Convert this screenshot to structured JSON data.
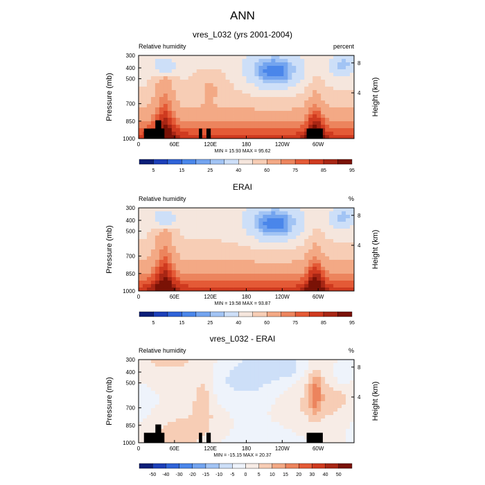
{
  "figure": {
    "title": "ANN"
  },
  "colormaps": {
    "abs": [
      "#0b1e78",
      "#1c3fb8",
      "#2f63d8",
      "#4a86ea",
      "#73a4ef",
      "#a2c4f4",
      "#cddff8",
      "#f5e6dd",
      "#f7cdb5",
      "#f3a985",
      "#ec845d",
      "#e45a36",
      "#cf3a1f",
      "#a82614",
      "#7a1206"
    ],
    "diff": [
      "#0b1e78",
      "#1c3fb8",
      "#2f63d8",
      "#4a86ea",
      "#73a4ef",
      "#a2c4f4",
      "#cddff8",
      "#eef3fb",
      "#f7ece6",
      "#f7cdb5",
      "#f3a985",
      "#ec845d",
      "#e45a36",
      "#cf3a1f",
      "#a82614",
      "#7a1206"
    ]
  },
  "chart_data": [
    {
      "type": "heatmap",
      "title": "vres_L032 (yrs 2001-2004)",
      "left_label": "Relative humidity",
      "right_label": "percent",
      "ylabel": "Pressure (mb)",
      "ylabel_right": "Height (km)",
      "xticks": [
        "0",
        "60E",
        "120E",
        "180",
        "120W",
        "60W"
      ],
      "yticks": [
        "300",
        "400",
        "500",
        "700",
        "850",
        "1000"
      ],
      "yticks_right": [
        "8",
        "4"
      ],
      "stats": "MIN = 15.93  MAX = 95.62",
      "colorbar": {
        "labels": [
          "5",
          "15",
          "25",
          "40",
          "60",
          "75",
          "85",
          "95"
        ],
        "map": "abs"
      },
      "zlim": [
        15.93,
        95.62
      ],
      "topography": true
    },
    {
      "type": "heatmap",
      "title": "ERAI",
      "left_label": "Relative humidity",
      "right_label": "%",
      "ylabel": "Pressure (mb)",
      "ylabel_right": "Height (km)",
      "xticks": [
        "0",
        "60E",
        "120E",
        "180",
        "120W",
        "60W"
      ],
      "yticks": [
        "300",
        "400",
        "500",
        "700",
        "850",
        "1000"
      ],
      "yticks_right": [
        "8",
        "4"
      ],
      "stats": "MIN = 19.58  MAX = 93.87",
      "colorbar": {
        "labels": [
          "5",
          "15",
          "25",
          "40",
          "60",
          "75",
          "85",
          "95"
        ],
        "map": "abs"
      },
      "zlim": [
        19.58,
        93.87
      ],
      "topography": false
    },
    {
      "type": "heatmap",
      "title": "vres_L032 - ERAI",
      "left_label": "Relative humidity",
      "right_label": "%",
      "ylabel": "Pressure (mb)",
      "ylabel_right": "Height (km)",
      "xticks": [
        "0",
        "60E",
        "120E",
        "180",
        "120W",
        "60W"
      ],
      "yticks": [
        "300",
        "400",
        "500",
        "700",
        "850",
        "1000"
      ],
      "yticks_right": [
        "8",
        "4"
      ],
      "stats": "MIN = -15.15  MAX = 20.37",
      "colorbar": {
        "labels": [
          "-50",
          "-40",
          "-30",
          "-20",
          "-15",
          "-10",
          "-5",
          "0",
          "5",
          "10",
          "15",
          "20",
          "30",
          "40",
          "50"
        ],
        "map": "diff"
      },
      "zlim": [
        -15.15,
        20.37
      ],
      "topography": true
    }
  ]
}
